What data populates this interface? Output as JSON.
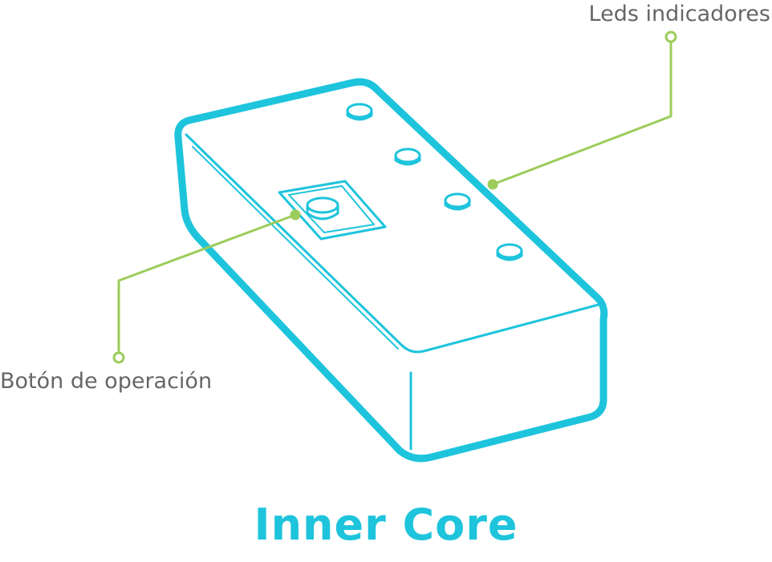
{
  "title": "Inner Core",
  "callouts": {
    "leds": "Leds indicadores",
    "button": "Botón de operación"
  },
  "colors": {
    "device_stroke": "#1dc4dc",
    "callout_line": "#9ccc5a",
    "label_text": "#666666",
    "title": "#1dc4dc"
  }
}
